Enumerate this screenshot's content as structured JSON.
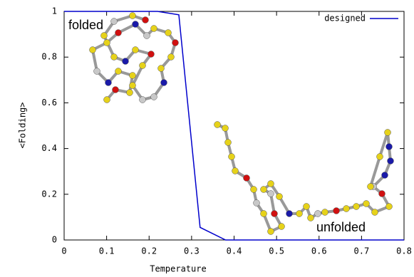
{
  "chart_data": {
    "type": "line",
    "x_label": "Temperature",
    "y_label": "<Folding>",
    "annotations": [
      "folded",
      "unfolded"
    ],
    "x": [
      0,
      0.22,
      0.27,
      0.32,
      0.38,
      0.8
    ],
    "series": [
      {
        "name": "designed",
        "color": "#0000cc",
        "values": [
          1,
          1,
          0.985,
          0.055,
          0,
          0
        ]
      }
    ],
    "xlim": [
      0,
      0.8
    ],
    "xticks": [
      0,
      0.1,
      0.2,
      0.3,
      0.4,
      0.5,
      0.6,
      0.7,
      0.8
    ],
    "ylim": [
      0,
      1
    ],
    "yticks": [
      0,
      0.2,
      0.4,
      0.6,
      0.8,
      1
    ],
    "legend": "upper right",
    "grid": false
  }
}
